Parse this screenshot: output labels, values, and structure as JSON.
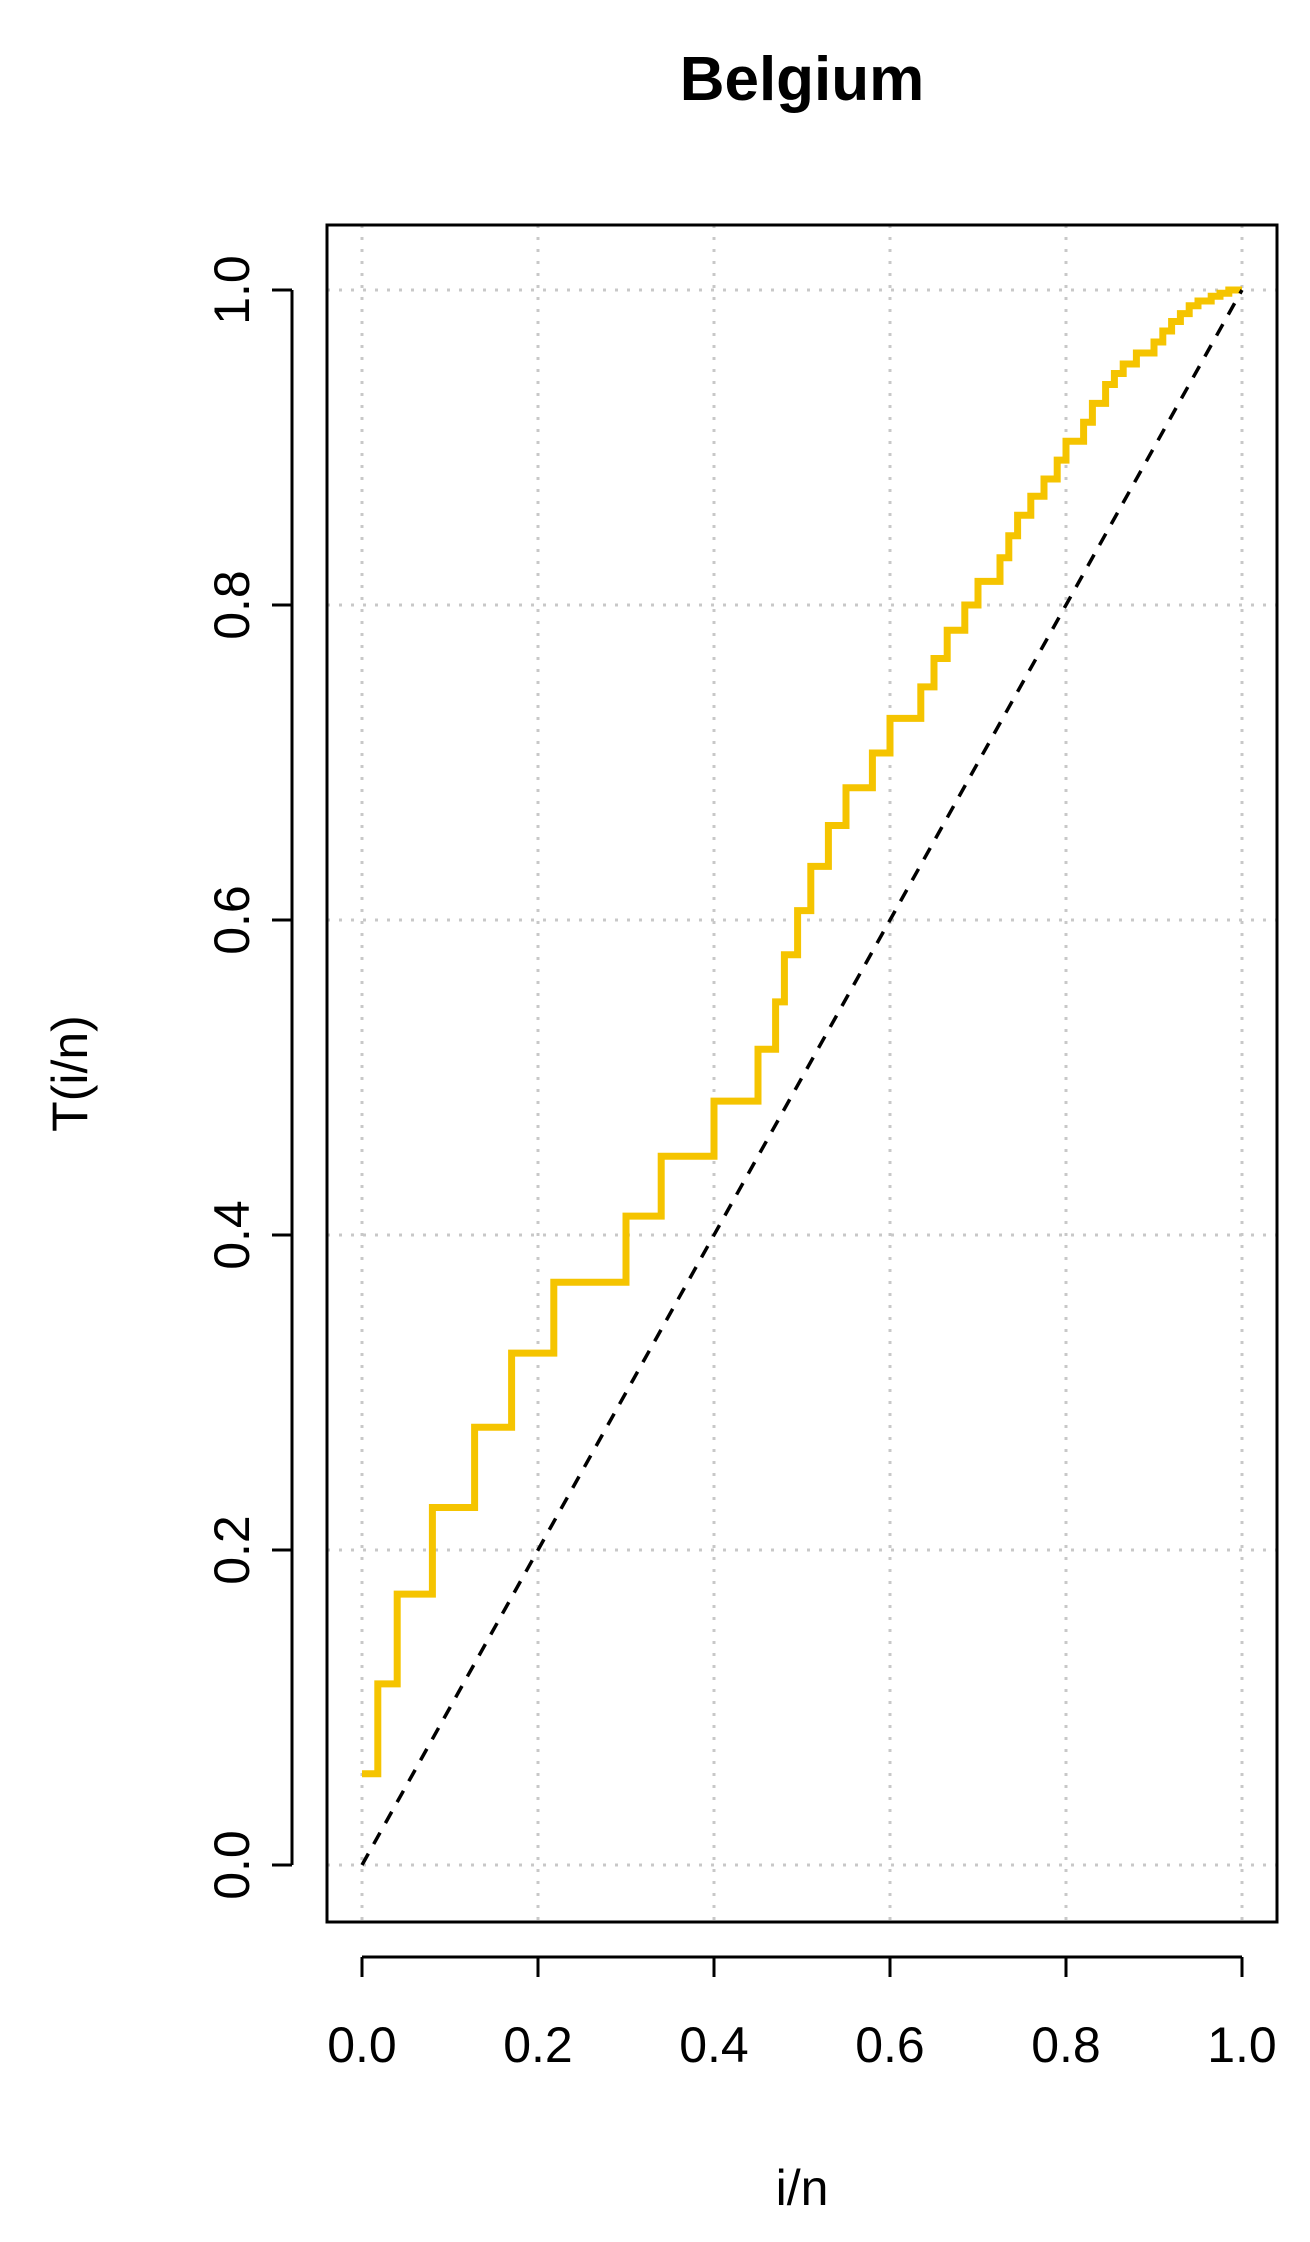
{
  "chart_data": {
    "type": "line",
    "title": "Belgium",
    "xlabel": "i/n",
    "ylabel": "T(i/n)",
    "xlim": [
      0.0,
      1.0
    ],
    "ylim": [
      0.0,
      1.0
    ],
    "xticks": [
      "0.0",
      "0.2",
      "0.4",
      "0.6",
      "0.8",
      "1.0"
    ],
    "yticks": [
      "0.0",
      "0.2",
      "0.4",
      "0.6",
      "0.8",
      "1.0"
    ],
    "grid": true,
    "legend": "none",
    "series": [
      {
        "style": "step",
        "color": "#F5C400",
        "x": [
          0.0,
          0.018,
          0.018,
          0.04,
          0.04,
          0.08,
          0.08,
          0.128,
          0.128,
          0.17,
          0.17,
          0.218,
          0.218,
          0.3,
          0.3,
          0.34,
          0.34,
          0.4,
          0.4,
          0.45,
          0.45,
          0.47,
          0.47,
          0.48,
          0.48,
          0.495,
          0.495,
          0.51,
          0.51,
          0.53,
          0.53,
          0.55,
          0.55,
          0.58,
          0.58,
          0.6,
          0.6,
          0.635,
          0.635,
          0.65,
          0.65,
          0.665,
          0.665,
          0.685,
          0.685,
          0.7,
          0.7,
          0.725,
          0.725,
          0.735,
          0.735,
          0.745,
          0.745,
          0.76,
          0.76,
          0.775,
          0.775,
          0.79,
          0.79,
          0.8,
          0.8,
          0.82,
          0.82,
          0.83,
          0.83,
          0.845,
          0.845,
          0.855,
          0.855,
          0.865,
          0.865,
          0.88,
          0.88,
          0.9,
          0.9,
          0.91,
          0.91,
          0.92,
          0.92,
          0.93,
          0.93,
          0.94,
          0.94,
          0.95,
          0.95,
          0.965,
          0.965,
          0.975,
          0.975,
          0.985,
          0.985,
          1.0
        ],
        "y": [
          0.058,
          0.058,
          0.115,
          0.115,
          0.172,
          0.172,
          0.227,
          0.227,
          0.278,
          0.278,
          0.325,
          0.325,
          0.37,
          0.37,
          0.412,
          0.412,
          0.45,
          0.45,
          0.485,
          0.485,
          0.518,
          0.518,
          0.548,
          0.548,
          0.578,
          0.578,
          0.606,
          0.606,
          0.634,
          0.634,
          0.66,
          0.66,
          0.684,
          0.684,
          0.706,
          0.706,
          0.728,
          0.728,
          0.748,
          0.748,
          0.766,
          0.766,
          0.784,
          0.784,
          0.8,
          0.8,
          0.815,
          0.815,
          0.83,
          0.83,
          0.844,
          0.844,
          0.857,
          0.857,
          0.869,
          0.869,
          0.88,
          0.88,
          0.892,
          0.892,
          0.904,
          0.904,
          0.916,
          0.916,
          0.928,
          0.928,
          0.94,
          0.94,
          0.947,
          0.947,
          0.953,
          0.953,
          0.96,
          0.96,
          0.967,
          0.967,
          0.974,
          0.974,
          0.98,
          0.98,
          0.985,
          0.985,
          0.99,
          0.99,
          0.993,
          0.993,
          0.996,
          0.996,
          0.998,
          0.998,
          1.0,
          1.0
        ]
      },
      {
        "style": "dashed",
        "color": "#000000",
        "x": [
          0.0,
          1.0
        ],
        "y": [
          0.0,
          1.0
        ]
      }
    ]
  }
}
